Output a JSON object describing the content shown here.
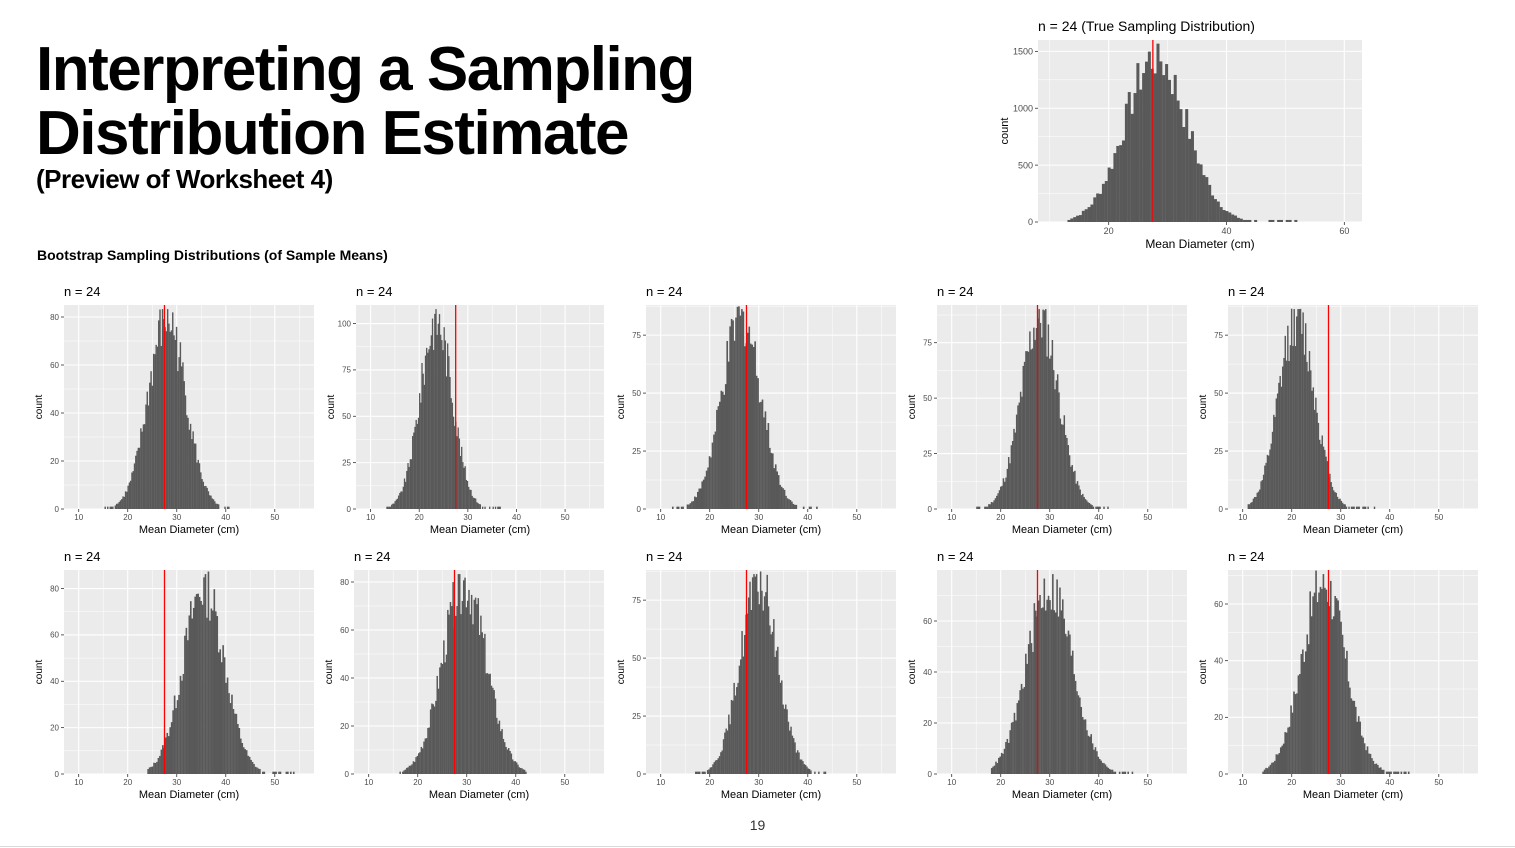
{
  "slide": {
    "title": "Interpreting a Sampling\nDistribution Estimate",
    "subtitle": "(Preview of Worksheet 4)",
    "section_label": "Bootstrap Sampling Distributions (of Sample Means)",
    "page_number": "19"
  },
  "colors": {
    "panel_bg": "#ebebeb",
    "grid": "#ffffff",
    "bars": "#595959",
    "reference_line": "#ff0000"
  },
  "chart_data": [
    {
      "type": "histogram",
      "title": "n = 24 (True Sampling Distribution)",
      "xlabel": "Mean Diameter (cm)",
      "ylabel": "count",
      "xlim": [
        8,
        63
      ],
      "ylim": [
        0,
        1600
      ],
      "xticks": [
        20,
        40,
        60
      ],
      "yticks": [
        0,
        500,
        1000,
        1500
      ],
      "reference_line": 27.5,
      "distribution": {
        "mean": 28,
        "sd": 5.2,
        "peak": 1500,
        "min": 13,
        "max": 52,
        "bins": 80
      }
    },
    {
      "type": "histogram",
      "title": "n = 24",
      "xlabel": "Mean Diameter (cm)",
      "ylabel": "count",
      "xlim": [
        7,
        58
      ],
      "ylim": [
        0,
        85
      ],
      "xticks": [
        10,
        20,
        30,
        40,
        50
      ],
      "yticks": [
        0,
        20,
        40,
        60,
        80
      ],
      "reference_line": 27.5,
      "distribution": {
        "mean": 28,
        "sd": 3.8,
        "peak": 82,
        "min": 15,
        "max": 41,
        "bins": 100
      }
    },
    {
      "type": "histogram",
      "title": "n = 24",
      "xlabel": "Mean Diameter (cm)",
      "ylabel": "count",
      "xlim": [
        7,
        58
      ],
      "ylim": [
        0,
        110
      ],
      "xticks": [
        10,
        20,
        30,
        40,
        50
      ],
      "yticks": [
        0,
        25,
        50,
        75,
        100
      ],
      "reference_line": 27.5,
      "distribution": {
        "mean": 23.5,
        "sd": 3.3,
        "peak": 105,
        "min": 13,
        "max": 37,
        "bins": 100
      }
    },
    {
      "type": "histogram",
      "title": "n = 24",
      "xlabel": "Mean Diameter (cm)",
      "ylabel": "count",
      "xlim": [
        7,
        58
      ],
      "ylim": [
        0,
        88
      ],
      "xticks": [
        10,
        20,
        30,
        40,
        50
      ],
      "yticks": [
        0,
        25,
        50,
        75
      ],
      "reference_line": 27.5,
      "distribution": {
        "mean": 26.5,
        "sd": 4.0,
        "peak": 85,
        "min": 12,
        "max": 42,
        "bins": 100
      }
    },
    {
      "type": "histogram",
      "title": "n = 24",
      "xlabel": "Mean Diameter (cm)",
      "ylabel": "count",
      "xlim": [
        7,
        58
      ],
      "ylim": [
        0,
        92
      ],
      "xticks": [
        10,
        20,
        30,
        40,
        50
      ],
      "yticks": [
        0,
        25,
        50,
        75
      ],
      "reference_line": 27.5,
      "distribution": {
        "mean": 28,
        "sd": 3.8,
        "peak": 89,
        "min": 15,
        "max": 42,
        "bins": 100
      }
    },
    {
      "type": "histogram",
      "title": "n = 24",
      "xlabel": "Mean Diameter (cm)",
      "ylabel": "count",
      "xlim": [
        7,
        58
      ],
      "ylim": [
        0,
        88
      ],
      "xticks": [
        10,
        20,
        30,
        40,
        50
      ],
      "yticks": [
        0,
        25,
        50,
        75
      ],
      "reference_line": 27.5,
      "distribution": {
        "mean": 21,
        "sd": 3.6,
        "peak": 85,
        "min": 11,
        "max": 37,
        "bins": 100
      }
    },
    {
      "type": "histogram",
      "title": "n = 24",
      "xlabel": "Mean Diameter (cm)",
      "ylabel": "count",
      "xlim": [
        7,
        58
      ],
      "ylim": [
        0,
        88
      ],
      "xticks": [
        10,
        20,
        30,
        40,
        50
      ],
      "yticks": [
        0,
        20,
        40,
        60,
        80
      ],
      "reference_line": 27.5,
      "distribution": {
        "mean": 35.5,
        "sd": 4.2,
        "peak": 83,
        "min": 24,
        "max": 54,
        "bins": 100
      }
    },
    {
      "type": "histogram",
      "title": "n = 24",
      "xlabel": "Mean Diameter (cm)",
      "ylabel": "count",
      "xlim": [
        7,
        58
      ],
      "ylim": [
        0,
        85
      ],
      "xticks": [
        10,
        20,
        30,
        40,
        50
      ],
      "yticks": [
        0,
        20,
        40,
        60,
        80
      ],
      "reference_line": 27.5,
      "distribution": {
        "mean": 29.5,
        "sd": 4.4,
        "peak": 82,
        "min": 16,
        "max": 43,
        "bins": 100
      }
    },
    {
      "type": "histogram",
      "title": "n = 24",
      "xlabel": "Mean Diameter (cm)",
      "ylabel": "count",
      "xlim": [
        7,
        58
      ],
      "ylim": [
        0,
        88
      ],
      "xticks": [
        10,
        20,
        30,
        40,
        50
      ],
      "yticks": [
        0,
        25,
        50,
        75
      ],
      "reference_line": 27.5,
      "distribution": {
        "mean": 30,
        "sd": 3.8,
        "peak": 85,
        "min": 17,
        "max": 44,
        "bins": 100
      }
    },
    {
      "type": "histogram",
      "title": "n = 24",
      "xlabel": "Mean Diameter (cm)",
      "ylabel": "count",
      "xlim": [
        7,
        58
      ],
      "ylim": [
        0,
        80
      ],
      "xticks": [
        10,
        20,
        30,
        40,
        50
      ],
      "yticks": [
        0,
        20,
        40,
        60
      ],
      "reference_line": 27.5,
      "distribution": {
        "mean": 30,
        "sd": 4.6,
        "peak": 76,
        "min": 18,
        "max": 47,
        "bins": 100
      }
    },
    {
      "type": "histogram",
      "title": "n = 24",
      "xlabel": "Mean Diameter (cm)",
      "ylabel": "count",
      "xlim": [
        7,
        58
      ],
      "ylim": [
        0,
        72
      ],
      "xticks": [
        10,
        20,
        30,
        40,
        50
      ],
      "yticks": [
        0,
        20,
        40,
        60
      ],
      "reference_line": 27.5,
      "distribution": {
        "mean": 26.5,
        "sd": 4.4,
        "peak": 70,
        "min": 14,
        "max": 44,
        "bins": 100
      }
    }
  ]
}
